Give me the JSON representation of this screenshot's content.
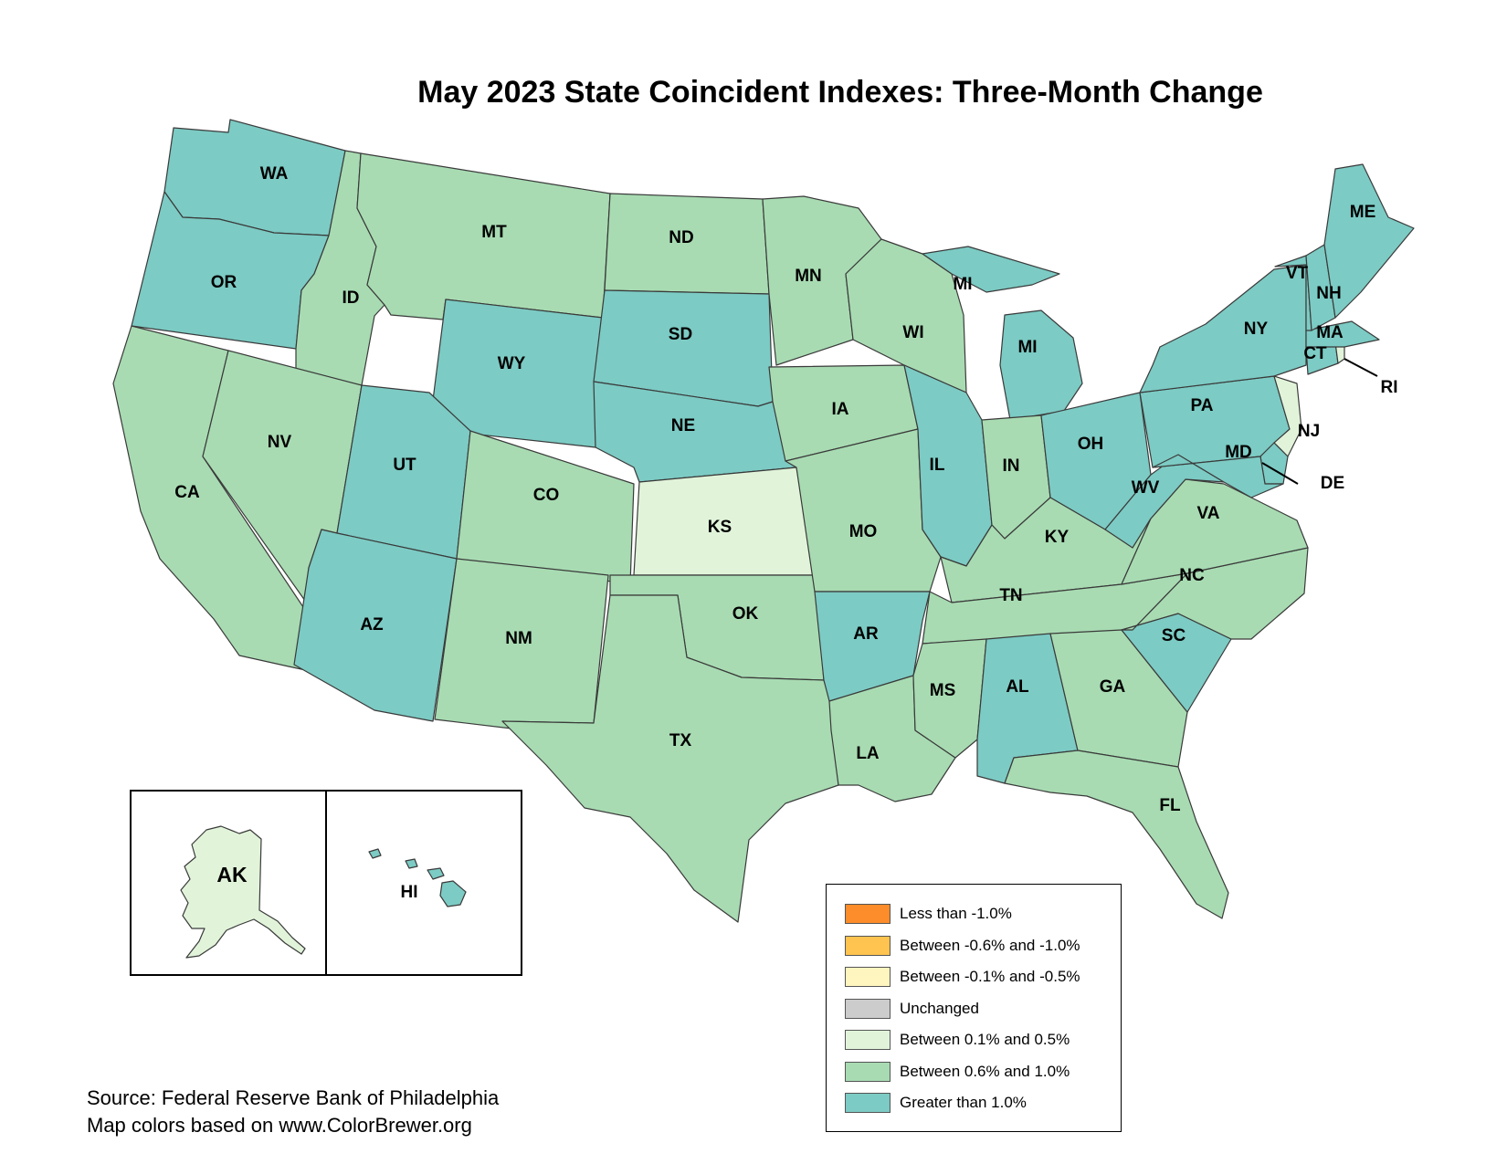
{
  "title": "May 2023 State Coincident Indexes: Three-Month Change",
  "colors": {
    "greater_than_1": "#7ccbc4",
    "between_06_10": "#a8dbb2",
    "between_01_05": "#e1f4da",
    "unchanged": "#cccccc",
    "between_neg01_neg05": "#fff5bf",
    "between_neg06_neg10": "#fec44f",
    "less_than_neg1": "#fc8d2a",
    "border": "#3a3a3a"
  },
  "legend": [
    {
      "label": "Less than -1.0%",
      "color": "#fc8d2a"
    },
    {
      "label": "Between -0.6% and -1.0%",
      "color": "#fec44f"
    },
    {
      "label": "Between -0.1% and -0.5%",
      "color": "#fff5bf"
    },
    {
      "label": "Unchanged",
      "color": "#cccccc"
    },
    {
      "label": "Between 0.1% and 0.5%",
      "color": "#e1f4da"
    },
    {
      "label": "Between 0.6% and 1.0%",
      "color": "#a8dbb2"
    },
    {
      "label": "Greater than 1.0%",
      "color": "#7ccbc4"
    }
  ],
  "states": {
    "WA": "Greater than 1.0%",
    "OR": "Greater than 1.0%",
    "CA": "Between 0.6% and 1.0%",
    "ID": "Between 0.6% and 1.0%",
    "NV": "Between 0.6% and 1.0%",
    "MT": "Between 0.6% and 1.0%",
    "WY": "Greater than 1.0%",
    "UT": "Greater than 1.0%",
    "AZ": "Greater than 1.0%",
    "CO": "Between 0.6% and 1.0%",
    "NM": "Between 0.6% and 1.0%",
    "ND": "Between 0.6% and 1.0%",
    "SD": "Greater than 1.0%",
    "NE": "Greater than 1.0%",
    "KS": "Between 0.1% and 0.5%",
    "OK": "Between 0.6% and 1.0%",
    "TX": "Between 0.6% and 1.0%",
    "MN": "Between 0.6% and 1.0%",
    "IA": "Between 0.6% and 1.0%",
    "MO": "Between 0.6% and 1.0%",
    "AR": "Greater than 1.0%",
    "LA": "Between 0.6% and 1.0%",
    "WI": "Between 0.6% and 1.0%",
    "IL": "Greater than 1.0%",
    "MI": "Greater than 1.0%",
    "IN": "Between 0.6% and 1.0%",
    "OH": "Greater than 1.0%",
    "KY": "Between 0.6% and 1.0%",
    "TN": "Between 0.6% and 1.0%",
    "MS": "Between 0.6% and 1.0%",
    "AL": "Greater than 1.0%",
    "GA": "Between 0.6% and 1.0%",
    "FL": "Between 0.6% and 1.0%",
    "SC": "Greater than 1.0%",
    "NC": "Between 0.6% and 1.0%",
    "VA": "Between 0.6% and 1.0%",
    "WV": "Greater than 1.0%",
    "PA": "Greater than 1.0%",
    "NY": "Greater than 1.0%",
    "NJ": "Between 0.1% and 0.5%",
    "DE": "Greater than 1.0%",
    "MD": "Greater than 1.0%",
    "CT": "Greater than 1.0%",
    "RI": "Between 0.1% and 0.5%",
    "MA": "Greater than 1.0%",
    "VT": "Greater than 1.0%",
    "NH": "Greater than 1.0%",
    "ME": "Greater than 1.0%",
    "AK": "Between 0.1% and 0.5%",
    "HI": "Greater than 1.0%"
  },
  "labels": {
    "WA": "WA",
    "OR": "OR",
    "CA": "CA",
    "ID": "ID",
    "NV": "NV",
    "MT": "MT",
    "WY": "WY",
    "UT": "UT",
    "AZ": "AZ",
    "CO": "CO",
    "NM": "NM",
    "ND": "ND",
    "SD": "SD",
    "NE": "NE",
    "KS": "KS",
    "OK": "OK",
    "TX": "TX",
    "MN": "MN",
    "IA": "IA",
    "MO": "MO",
    "AR": "AR",
    "LA": "LA",
    "WI": "WI",
    "IL": "IL",
    "MI": "MI",
    "IN": "IN",
    "OH": "OH",
    "KY": "KY",
    "TN": "TN",
    "MS": "MS",
    "AL": "AL",
    "GA": "GA",
    "FL": "FL",
    "SC": "SC",
    "NC": "NC",
    "VA": "VA",
    "WV": "WV",
    "PA": "PA",
    "NY": "NY",
    "NJ": "NJ",
    "DE": "DE",
    "MD": "MD",
    "CT": "CT",
    "RI": "RI",
    "MA": "MA",
    "VT": "VT",
    "NH": "NH",
    "ME": "ME",
    "AK": "AK",
    "HI": "HI"
  },
  "source": {
    "line1": "Source: Federal Reserve Bank of Philadelphia",
    "line2": "Map colors based on www.ColorBrewer.org"
  }
}
